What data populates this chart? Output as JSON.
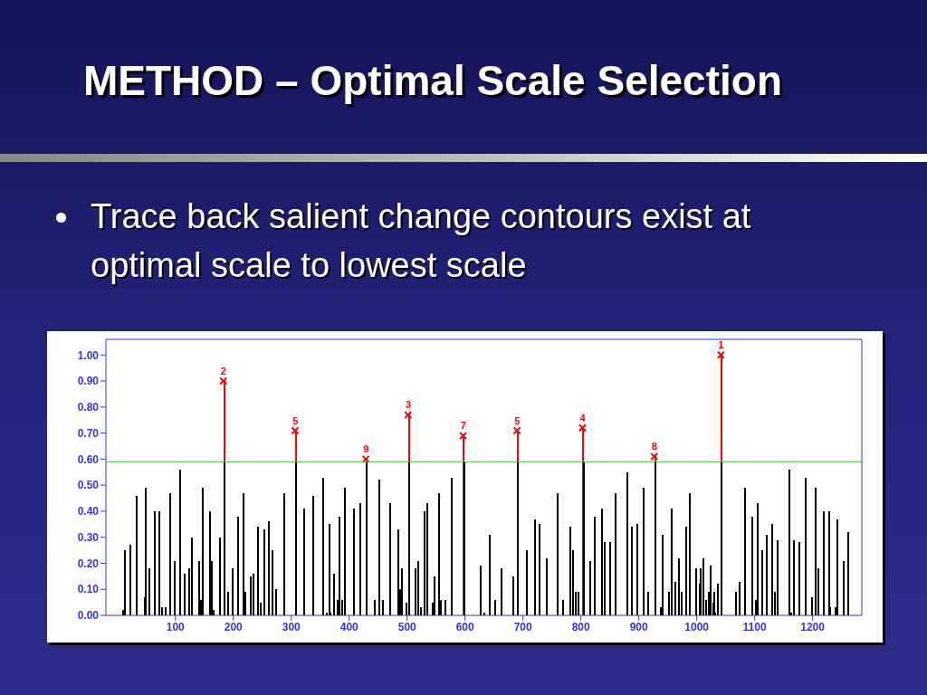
{
  "chart_data": {
    "type": "bar",
    "title": "METHOD – Optimal Scale Selection",
    "subtitle": "Trace back salient change contours exist at optimal scale to lowest scale",
    "marker": "cross",
    "x": [
      8,
      12,
      21,
      32,
      46,
      47,
      54,
      63,
      71,
      76,
      82,
      89,
      98,
      107,
      114,
      123,
      127,
      139,
      143,
      146,
      158,
      162,
      165,
      176,
      183,
      189,
      198,
      207,
      216,
      219,
      229,
      233,
      241,
      246,
      252,
      260,
      266,
      273,
      287,
      307,
      320,
      336,
      353,
      360,
      365,
      366,
      373,
      378,
      382,
      386,
      391,
      406,
      418,
      429,
      442,
      451,
      457,
      469,
      484,
      486,
      489,
      497,
      502,
      513,
      517,
      522,
      528,
      534,
      542,
      546,
      553,
      557,
      564,
      575,
      597,
      625,
      632,
      641,
      650,
      661,
      681,
      690,
      706,
      720,
      727,
      740,
      758,
      767,
      781,
      785,
      790,
      794,
      803,
      814,
      823,
      835,
      840,
      849,
      858,
      878,
      887,
      896,
      907,
      914,
      927,
      937,
      939,
      950,
      955,
      962,
      968,
      973,
      980,
      986,
      997,
      1004,
      1006,
      1010,
      1015,
      1019,
      1022,
      1027,
      1029,
      1031,
      1035,
      1042,
      1066,
      1073,
      1082,
      1095,
      1100,
      1103,
      1111,
      1120,
      1129,
      1134,
      1138,
      1158,
      1162,
      1166,
      1176,
      1186,
      1198,
      1203,
      1209,
      1218,
      1227,
      1229,
      1238,
      1242,
      1253,
      1260
    ],
    "series": [
      {
        "color": "#000000",
        "values": [
          0.02,
          0.25,
          0.27,
          0.46,
          0.07,
          0.49,
          0.18,
          0.4,
          0.4,
          0.03,
          0.03,
          0.47,
          0.21,
          0.56,
          0.16,
          0.18,
          0.3,
          0.21,
          0.06,
          0.49,
          0.4,
          0.21,
          0.02,
          0.3,
          0.59,
          0.09,
          0.18,
          0.38,
          0.47,
          0.09,
          0.15,
          0.16,
          0.34,
          0.05,
          0.33,
          0.36,
          0.25,
          0.1,
          0.47,
          0.59,
          0.41,
          0.46,
          0.53,
          0.01,
          0.35,
          0.01,
          0.16,
          0.06,
          0.38,
          0.06,
          0.49,
          0.41,
          0.43,
          0.59,
          0.06,
          0.52,
          0.06,
          0.43,
          0.33,
          0.1,
          0.18,
          0.05,
          0.59,
          0.18,
          0.21,
          0.03,
          0.4,
          0.43,
          0.05,
          0.15,
          0.47,
          0.06,
          0.06,
          0.53,
          0.59,
          0.19,
          0.01,
          0.31,
          0.06,
          0.18,
          0.15,
          0.59,
          0.25,
          0.37,
          0.35,
          0.22,
          0.47,
          0.06,
          0.34,
          0.25,
          0.09,
          0.09,
          0.59,
          0.21,
          0.38,
          0.41,
          0.28,
          0.28,
          0.47,
          0.55,
          0.34,
          0.35,
          0.49,
          0.09,
          0.59,
          0.03,
          0.31,
          0.09,
          0.41,
          0.13,
          0.22,
          0.09,
          0.34,
          0.47,
          0.18,
          0.12,
          0.18,
          0.22,
          0.06,
          0.09,
          0.19,
          0.05,
          0.09,
          0.01,
          0.12,
          0.59,
          0.09,
          0.13,
          0.49,
          0.38,
          0.06,
          0.43,
          0.25,
          0.31,
          0.35,
          0.09,
          0.29,
          0.56,
          0.01,
          0.29,
          0.28,
          0.53,
          0.07,
          0.49,
          0.18,
          0.4,
          0.4,
          0.03,
          0.03,
          0.37,
          0.21,
          0.32
        ]
      },
      {
        "type": "lollipop",
        "color": "#ff0000",
        "x": [
          183,
          307,
          429,
          502,
          597,
          690,
          803,
          927,
          1042
        ],
        "values": [
          0.9,
          0.71,
          0.6,
          0.77,
          0.69,
          0.71,
          0.72,
          0.61,
          1.0
        ]
      }
    ],
    "ref_lines": [
      {
        "axis": "y",
        "value": 0.59,
        "color": "#33cc33"
      }
    ],
    "annotations": [
      {
        "text": "2",
        "x": 183,
        "y": 0.9
      },
      {
        "text": "5",
        "x": 307,
        "y": 0.71
      },
      {
        "text": "9",
        "x": 429,
        "y": 0.6
      },
      {
        "text": "3",
        "x": 502,
        "y": 0.77
      },
      {
        "text": "7",
        "x": 597,
        "y": 0.69
      },
      {
        "text": "5",
        "x": 690,
        "y": 0.71
      },
      {
        "text": "4",
        "x": 803,
        "y": 0.72
      },
      {
        "text": "8",
        "x": 927,
        "y": 0.61
      },
      {
        "text": "1",
        "x": 1042,
        "y": 1.0
      }
    ],
    "xlim": [
      -20,
      1285
    ],
    "xticks": [
      100,
      200,
      300,
      400,
      500,
      600,
      700,
      800,
      900,
      1000,
      1100,
      1200
    ],
    "ylim": [
      0,
      1.06
    ],
    "yticks": [
      {
        "value": 0,
        "label": "0.00"
      },
      {
        "value": 0.1,
        "label": "0.10"
      },
      {
        "value": 0.2,
        "label": "0.20"
      },
      {
        "value": 0.3,
        "label": "0.30"
      },
      {
        "value": 0.4,
        "label": "0.40"
      },
      {
        "value": 0.5,
        "label": "0.50"
      },
      {
        "value": 0.6,
        "label": "0.60"
      },
      {
        "value": 0.7,
        "label": "0.70"
      },
      {
        "value": 0.8,
        "label": "0.80"
      },
      {
        "value": 0.9,
        "label": "0.90"
      },
      {
        "value": 1,
        "label": "1.00"
      }
    ]
  }
}
